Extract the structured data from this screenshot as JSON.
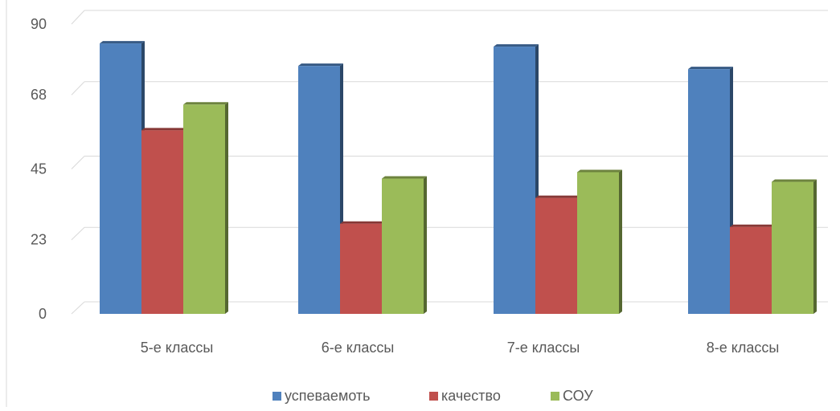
{
  "chart_data": {
    "type": "bar",
    "categories": [
      "5-е классы",
      "6-е классы",
      "7-е классы",
      "8-е классы"
    ],
    "series": [
      {
        "name": "успеваемоть",
        "color": "#4f81bd",
        "values": [
          84,
          77,
          83,
          76
        ]
      },
      {
        "name": "качество",
        "color": "#c0504d",
        "values": [
          57,
          28,
          36,
          27
        ]
      },
      {
        "name": "СОУ",
        "color": "#9bbb59",
        "values": [
          65,
          42,
          44,
          41
        ]
      }
    ],
    "ylim": [
      0,
      90
    ],
    "yticks": [
      0,
      23,
      45,
      68,
      90
    ],
    "grid": true,
    "legend_position": "bottom",
    "title": "",
    "xlabel": "",
    "ylabel": ""
  }
}
